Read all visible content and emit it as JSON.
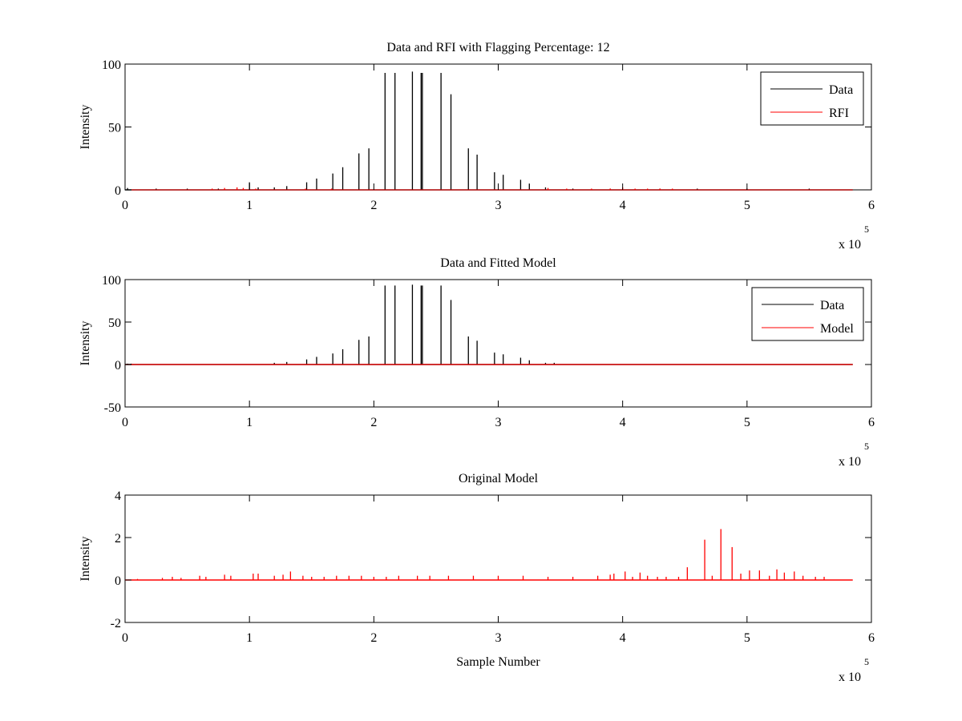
{
  "chart_data": [
    {
      "type": "line",
      "title": "Data and RFI with Flagging Percentage: 12",
      "xlabel": "",
      "ylabel": "Intensity",
      "xlim": [
        0,
        6
      ],
      "ylim": [
        0,
        100
      ],
      "xticks": [
        "0",
        "1",
        "2",
        "3",
        "4",
        "5",
        "6"
      ],
      "yticks": [
        "0",
        "50",
        "100"
      ],
      "ytick_values": [
        0,
        50,
        100
      ],
      "x_multiplier_base": "x 10",
      "x_multiplier_exp": "5",
      "legend": {
        "position": "top-right",
        "entries": [
          "Data",
          "RFI"
        ]
      },
      "series": [
        {
          "name": "Data",
          "color": "#000000",
          "style": "spikes",
          "x": [
            0.02,
            0.25,
            0.5,
            0.75,
            1.0,
            1.07,
            1.2,
            1.3,
            1.46,
            1.54,
            1.67,
            1.75,
            1.88,
            1.96,
            2.09,
            2.17,
            2.31,
            2.38,
            2.39,
            2.54,
            2.62,
            2.76,
            2.83,
            2.97,
            3.04,
            3.18,
            3.25,
            3.38,
            3.6,
            3.9,
            4.3,
            4.6,
            5.0,
            5.5
          ],
          "values": [
            1.5,
            1,
            1,
            1,
            6,
            2,
            2,
            3,
            6,
            9,
            13,
            18,
            29,
            33,
            93,
            93,
            94,
            93,
            93,
            93,
            76,
            33,
            28,
            14,
            12,
            8,
            5,
            2,
            1,
            1,
            1,
            1,
            1,
            1
          ]
        },
        {
          "name": "RFI",
          "color": "#ff0000",
          "style": "spikes",
          "x": [
            0.7,
            0.8,
            0.9,
            0.95,
            1.05,
            1.45,
            1.66,
            3.4,
            3.55,
            3.75,
            3.9,
            4.0,
            4.1,
            4.2,
            4.3,
            4.4
          ],
          "values": [
            1,
            1.5,
            2,
            1.5,
            1,
            1,
            1,
            1.5,
            1,
            1,
            1,
            2,
            1,
            1,
            1,
            1
          ]
        }
      ]
    },
    {
      "type": "line",
      "title": "Data and Fitted Model",
      "xlabel": "",
      "ylabel": "Intensity",
      "xlim": [
        0,
        6
      ],
      "ylim": [
        -50,
        100
      ],
      "xticks": [
        "0",
        "1",
        "2",
        "3",
        "4",
        "5",
        "6"
      ],
      "yticks": [
        "-50",
        "0",
        "50",
        "100"
      ],
      "ytick_values": [
        -50,
        0,
        50,
        100
      ],
      "x_multiplier_base": "x 10",
      "x_multiplier_exp": "5",
      "legend": {
        "position": "top-right",
        "entries": [
          "Data",
          "Model"
        ]
      },
      "series": [
        {
          "name": "Data",
          "color": "#000000",
          "style": "spikes",
          "x": [
            0.02,
            0.05,
            1.2,
            1.3,
            1.46,
            1.54,
            1.67,
            1.75,
            1.88,
            1.96,
            2.09,
            2.17,
            2.31,
            2.38,
            2.39,
            2.54,
            2.62,
            2.76,
            2.83,
            2.97,
            3.04,
            3.18,
            3.25,
            3.38,
            3.45
          ],
          "values": [
            1,
            1,
            2,
            3,
            6,
            9,
            13,
            18,
            29,
            33,
            93,
            93,
            94,
            93,
            93,
            93,
            76,
            33,
            28,
            14,
            12,
            8,
            5,
            2,
            2
          ]
        },
        {
          "name": "Model",
          "color": "#ff0000",
          "style": "baseline",
          "x": [
            0,
            5.85
          ],
          "values": [
            0,
            0
          ]
        }
      ]
    },
    {
      "type": "line",
      "title": "Original Model",
      "xlabel": "Sample Number",
      "ylabel": "Intensity",
      "xlim": [
        0,
        6
      ],
      "ylim": [
        -2,
        4
      ],
      "xticks": [
        "0",
        "1",
        "2",
        "3",
        "4",
        "5",
        "6"
      ],
      "yticks": [
        "-2",
        "0",
        "2",
        "4"
      ],
      "ytick_values": [
        -2,
        0,
        2,
        4
      ],
      "x_multiplier_base": "x 10",
      "x_multiplier_exp": "5",
      "series": [
        {
          "name": "",
          "color": "#ff0000",
          "style": "spikes",
          "x": [
            0.1,
            0.3,
            0.38,
            0.45,
            0.6,
            0.65,
            0.8,
            0.85,
            1.03,
            1.07,
            1.2,
            1.27,
            1.33,
            1.43,
            1.5,
            1.6,
            1.7,
            1.8,
            1.9,
            2.0,
            2.1,
            2.2,
            2.35,
            2.45,
            2.6,
            2.8,
            3.0,
            3.2,
            3.4,
            3.6,
            3.8,
            3.9,
            3.93,
            4.02,
            4.08,
            4.14,
            4.2,
            4.28,
            4.35,
            4.45,
            4.52,
            4.66,
            4.72,
            4.79,
            4.88,
            4.95,
            5.02,
            5.1,
            5.18,
            5.24,
            5.3,
            5.38,
            5.45,
            5.55,
            5.62
          ],
          "values": [
            0.05,
            0.1,
            0.15,
            0.1,
            0.2,
            0.15,
            0.25,
            0.2,
            0.3,
            0.3,
            0.2,
            0.25,
            0.4,
            0.2,
            0.15,
            0.15,
            0.2,
            0.2,
            0.2,
            0.15,
            0.15,
            0.2,
            0.2,
            0.2,
            0.2,
            0.2,
            0.2,
            0.2,
            0.15,
            0.15,
            0.2,
            0.25,
            0.3,
            0.4,
            0.15,
            0.35,
            0.2,
            0.15,
            0.15,
            0.15,
            0.6,
            1.9,
            0.2,
            2.4,
            1.55,
            0.3,
            0.45,
            0.45,
            0.2,
            0.5,
            0.35,
            0.4,
            0.2,
            0.15,
            0.15
          ]
        }
      ]
    }
  ]
}
